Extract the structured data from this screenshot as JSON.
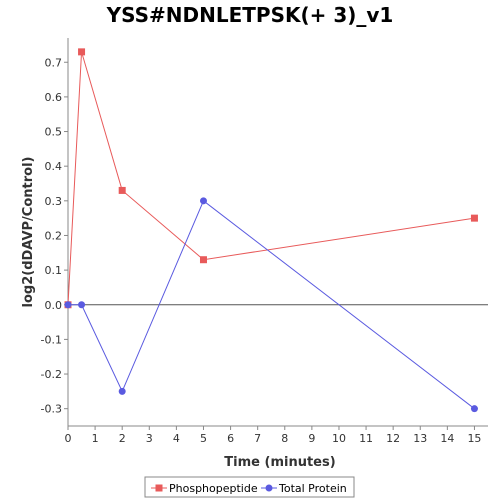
{
  "chart_data": {
    "type": "line",
    "title": "YSS#NDNLETPSK(+ 3)_v1",
    "xlabel": "Time (minutes)",
    "ylabel": "log2(dDAVP/Control)",
    "xlim": [
      0,
      15.5
    ],
    "ylim": [
      -0.35,
      0.77
    ],
    "xticks": [
      0,
      1,
      2,
      3,
      4,
      5,
      6,
      7,
      8,
      9,
      10,
      11,
      12,
      13,
      14,
      15
    ],
    "yticks": [
      -0.3,
      -0.2,
      -0.1,
      0.0,
      0.1,
      0.2,
      0.3,
      0.4,
      0.5,
      0.6,
      0.7
    ],
    "ytick_labels": [
      "-0.3",
      "-0.2",
      "-0.1",
      "0.0",
      "0.1",
      "0.2",
      "0.3",
      "0.4",
      "0.5",
      "0.6",
      "0.7"
    ],
    "grid": false,
    "zero_line": true,
    "legend_position": "bottom",
    "series": [
      {
        "name": "Phosphopeptide",
        "color": "#e85a5a",
        "marker": "square",
        "x": [
          0,
          0.5,
          2,
          5,
          15
        ],
        "y": [
          0.0,
          0.73,
          0.33,
          0.13,
          0.25
        ]
      },
      {
        "name": "Total Protein",
        "color": "#5a5ae0",
        "marker": "circle",
        "x": [
          0,
          0.5,
          2,
          5,
          15
        ],
        "y": [
          0.0,
          0.0,
          -0.25,
          0.3,
          -0.3
        ]
      }
    ]
  }
}
